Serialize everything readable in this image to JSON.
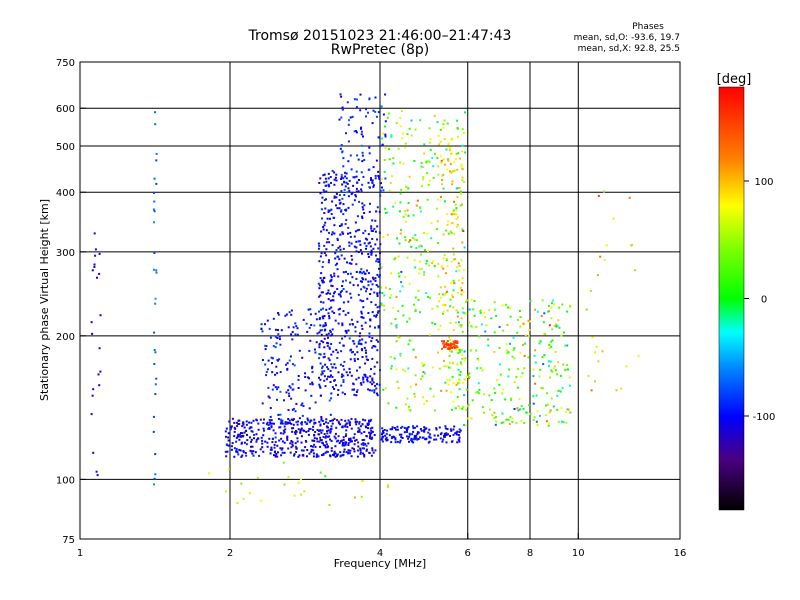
{
  "chart_data": {
    "type": "scatter",
    "title_line1": "Tromsø 20151023 21:46:00–21:47:43",
    "title_line2": "RwPretec (8p)",
    "info_title": "Phases",
    "info_line1": "mean, sd,O: -93.6, 19.7",
    "info_line2": "mean, sd,X:  92.8, 25.5",
    "xlabel": "Frequency [MHz]",
    "ylabel": "Stationary phase Virtual Height [km]",
    "x_scale": "log",
    "y_scale": "log",
    "xlim": [
      1,
      16
    ],
    "ylim": [
      75,
      750
    ],
    "x_ticks": [
      1,
      2,
      4,
      6,
      8,
      10,
      16
    ],
    "x_tick_labels": [
      "1",
      "2",
      "4",
      "6",
      "8",
      "10",
      "16"
    ],
    "x_grid": [
      2,
      4,
      6,
      8,
      10
    ],
    "y_ticks": [
      75,
      100,
      200,
      300,
      400,
      500,
      600,
      750
    ],
    "y_tick_labels": [
      "75",
      "100",
      "200",
      "300",
      "400",
      "500",
      "600",
      "750"
    ],
    "y_grid": [
      100,
      200,
      300,
      400,
      500,
      600
    ],
    "colorbar": {
      "label": "[deg]",
      "range": [
        -180,
        180
      ],
      "ticks": [
        100,
        0,
        -100
      ],
      "tick_labels": [
        "100",
        "0",
        "-100"
      ]
    },
    "clusters": [
      {
        "x_min": 1.95,
        "x_max": 3.9,
        "y_min": 112,
        "y_max": 135,
        "phase": -105,
        "spread": 20,
        "n": 520
      },
      {
        "x_min": 3.0,
        "x_max": 4.0,
        "y_min": 150,
        "y_max": 450,
        "phase": -100,
        "spread": 20,
        "n": 600
      },
      {
        "x_min": 2.3,
        "x_max": 3.2,
        "y_min": 130,
        "y_max": 230,
        "phase": -95,
        "spread": 25,
        "n": 180
      },
      {
        "x_min": 3.3,
        "x_max": 4.1,
        "y_min": 400,
        "y_max": 650,
        "phase": -90,
        "spread": 25,
        "n": 90
      },
      {
        "x_min": 4.0,
        "x_max": 5.8,
        "y_min": 120,
        "y_max": 130,
        "phase": -100,
        "spread": 15,
        "n": 150
      },
      {
        "x_min": 4.0,
        "x_max": 5.9,
        "y_min": 140,
        "y_max": 600,
        "phase": 40,
        "spread": 90,
        "n": 330
      },
      {
        "x_min": 5.2,
        "x_max": 5.9,
        "y_min": 150,
        "y_max": 550,
        "phase": 90,
        "spread": 40,
        "n": 130
      },
      {
        "x_min": 5.3,
        "x_max": 5.7,
        "y_min": 188,
        "y_max": 196,
        "phase": 150,
        "spread": 15,
        "n": 45
      },
      {
        "x_min": 5.7,
        "x_max": 9.6,
        "y_min": 130,
        "y_max": 240,
        "phase": 30,
        "spread": 90,
        "n": 280
      },
      {
        "x_min": 1.05,
        "x_max": 1.1,
        "y_min": 85,
        "y_max": 330,
        "phase": -110,
        "spread": 10,
        "n": 22
      },
      {
        "x_min": 1.4,
        "x_max": 1.42,
        "y_min": 95,
        "y_max": 610,
        "phase": -70,
        "spread": 20,
        "n": 30
      },
      {
        "x_min": 10.3,
        "x_max": 13.2,
        "y_min": 150,
        "y_max": 440,
        "phase": 80,
        "spread": 60,
        "n": 25
      },
      {
        "x_min": 1.7,
        "x_max": 4.5,
        "y_min": 88,
        "y_max": 110,
        "phase": 60,
        "spread": 60,
        "n": 25
      }
    ]
  }
}
